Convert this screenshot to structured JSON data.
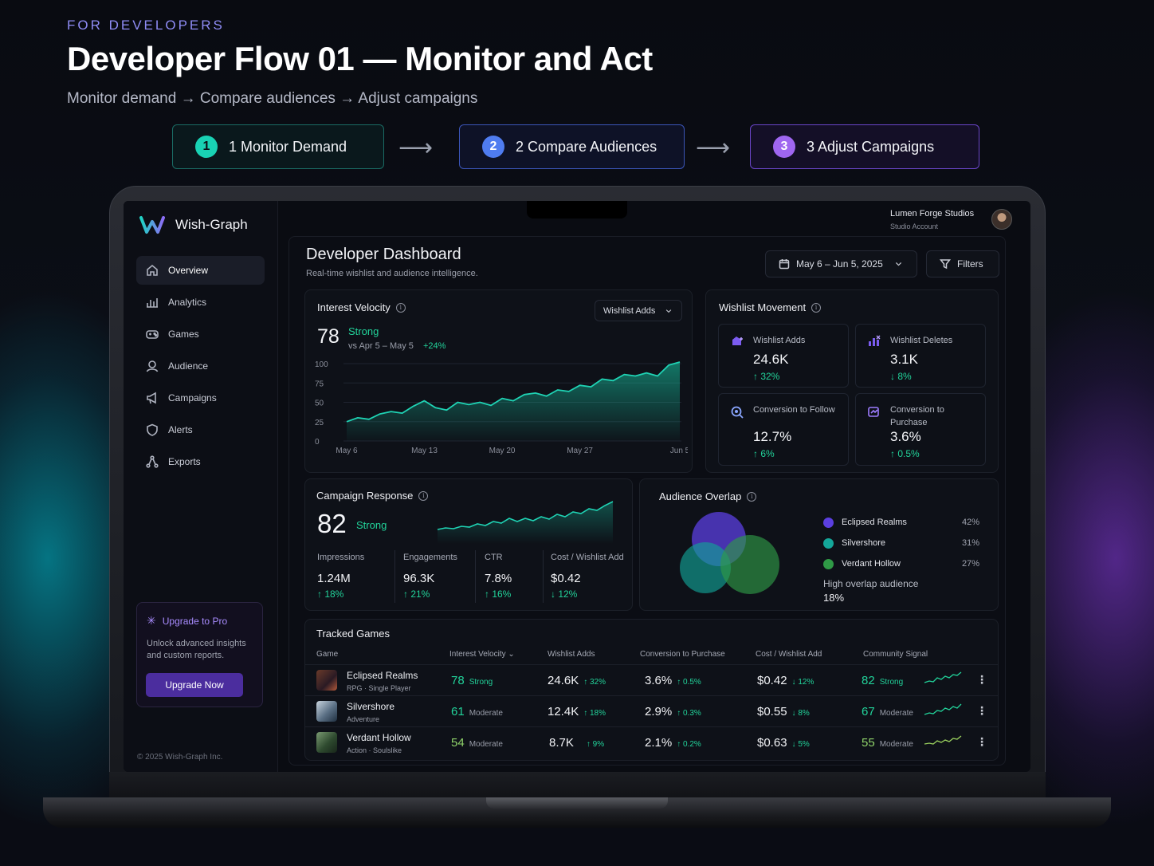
{
  "hero": {
    "eyebrow": "FOR DEVELOPERS",
    "title": "Developer Flow 01 — Monitor and Act",
    "subtitle": "Monitor demand → Compare audiences → Adjust campaigns"
  },
  "steps": [
    {
      "num": "1",
      "label": "1 Monitor Demand"
    },
    {
      "num": "2",
      "label": "2 Compare Audiences"
    },
    {
      "num": "3",
      "label": "3 Adjust Campaigns"
    }
  ],
  "brand": {
    "name": "Wish-Graph"
  },
  "account": {
    "name": "Lumen Forge Studios",
    "type": "Studio Account"
  },
  "sidebar": {
    "items": [
      {
        "label": "Overview",
        "icon": "home-icon"
      },
      {
        "label": "Analytics",
        "icon": "bar-chart-icon"
      },
      {
        "label": "Games",
        "icon": "gamepad-icon"
      },
      {
        "label": "Audience",
        "icon": "user-icon"
      },
      {
        "label": "Campaigns",
        "icon": "megaphone-icon"
      },
      {
        "label": "Alerts",
        "icon": "shield-icon"
      },
      {
        "label": "Exports",
        "icon": "share-icon"
      }
    ],
    "upgrade": {
      "title": "Upgrade to Pro",
      "desc": "Unlock advanced insights and custom reports.",
      "button": "Upgrade Now"
    },
    "copyright": "© 2025 Wish-Graph Inc."
  },
  "dashboard": {
    "title": "Developer Dashboard",
    "subtitle": "Real-time wishlist and audience intelligence.",
    "date_range": "May 6 – Jun 5, 2025",
    "filters_label": "Filters"
  },
  "interest_velocity": {
    "title": "Interest Velocity",
    "dropdown": "Wishlist Adds",
    "score": "78",
    "rating": "Strong",
    "compare": "vs Apr 5 – May 5",
    "change": "+24%",
    "y_ticks": [
      "100",
      "75",
      "50",
      "25",
      "0"
    ],
    "x_ticks": [
      "May 6",
      "May 13",
      "May 20",
      "May 27",
      "Jun 5"
    ]
  },
  "chart_data": {
    "type": "area",
    "x": [
      "May 6",
      "May 7",
      "May 8",
      "May 9",
      "May 10",
      "May 11",
      "May 12",
      "May 13",
      "May 14",
      "May 15",
      "May 16",
      "May 17",
      "May 18",
      "May 19",
      "May 20",
      "May 21",
      "May 22",
      "May 23",
      "May 24",
      "May 25",
      "May 26",
      "May 27",
      "May 28",
      "May 29",
      "May 30",
      "May 31",
      "Jun 1",
      "Jun 2",
      "Jun 3",
      "Jun 4",
      "Jun 5"
    ],
    "values": [
      25,
      30,
      28,
      35,
      38,
      36,
      45,
      52,
      43,
      40,
      50,
      47,
      50,
      46,
      55,
      52,
      60,
      62,
      58,
      66,
      64,
      72,
      70,
      80,
      78,
      86,
      84,
      88,
      84,
      98,
      115
    ],
    "ylim": [
      0,
      100
    ]
  },
  "wishlist_movement": {
    "title": "Wishlist Movement",
    "metrics": [
      {
        "label": "Wishlist Adds",
        "value": "24.6K",
        "change": "↑ 32%",
        "icon": "wishlist-add-icon"
      },
      {
        "label": "Wishlist Deletes",
        "value": "3.1K",
        "change": "↓ 8%",
        "icon": "wishlist-delete-icon"
      },
      {
        "label": "Conversion to Follow",
        "value": "12.7%",
        "change": "↑ 6%",
        "icon": "follow-icon"
      },
      {
        "label": "Conversion to Purchase",
        "value": "3.6%",
        "change": "↑ 0.5%",
        "icon": "purchase-icon"
      }
    ]
  },
  "campaign_response": {
    "title": "Campaign Response",
    "score": "82",
    "rating": "Strong",
    "stats": [
      {
        "label": "Impressions",
        "value": "1.24M",
        "change": "↑ 18%"
      },
      {
        "label": "Engagements",
        "value": "96.3K",
        "change": "↑ 21%"
      },
      {
        "label": "CTR",
        "value": "7.8%",
        "change": "↑ 16%"
      },
      {
        "label": "Cost / Wishlist Add",
        "value": "$0.42",
        "change": "↓ 12%"
      }
    ]
  },
  "audience_overlap": {
    "title": "Audience Overlap",
    "legend": [
      {
        "name": "Eclipsed Realms",
        "pct": "42%",
        "color": "#5b3fe0"
      },
      {
        "name": "Silvershore",
        "pct": "31%",
        "color": "#14a79a"
      },
      {
        "name": "Verdant Hollow",
        "pct": "27%",
        "color": "#2f9a46"
      }
    ],
    "overlap_label": "High overlap audience",
    "overlap_value": "18%"
  },
  "tracked_games": {
    "title": "Tracked Games",
    "headers": [
      "Game",
      "Interest Velocity ⌄",
      "Wishlist Adds",
      "Conversion to Purchase",
      "Cost / Wishlist Add",
      "Community Signal"
    ],
    "rows": [
      {
        "name": "Eclipsed Realms",
        "genre": "RPG · Single Player",
        "iv": "78",
        "iv_label": "Strong",
        "adds": "24.6K",
        "adds_chg": "↑ 32%",
        "conv": "3.6%",
        "conv_chg": "↑ 0.5%",
        "cost": "$0.42",
        "cost_chg": "↓ 12%",
        "cs": "82",
        "cs_label": "Strong"
      },
      {
        "name": "Silvershore",
        "genre": "Adventure",
        "iv": "61",
        "iv_label": "Moderate",
        "adds": "12.4K",
        "adds_chg": "↑ 18%",
        "conv": "2.9%",
        "conv_chg": "↑ 0.3%",
        "cost": "$0.55",
        "cost_chg": "↓ 8%",
        "cs": "67",
        "cs_label": "Moderate"
      },
      {
        "name": "Verdant Hollow",
        "genre": "Action · Soulslike",
        "iv": "54",
        "iv_label": "Moderate",
        "adds": "8.7K",
        "adds_chg": "↑ 9%",
        "conv": "2.1%",
        "conv_chg": "↑ 0.2%",
        "cost": "$0.63",
        "cost_chg": "↓ 5%",
        "cs": "55",
        "cs_label": "Moderate"
      }
    ]
  }
}
